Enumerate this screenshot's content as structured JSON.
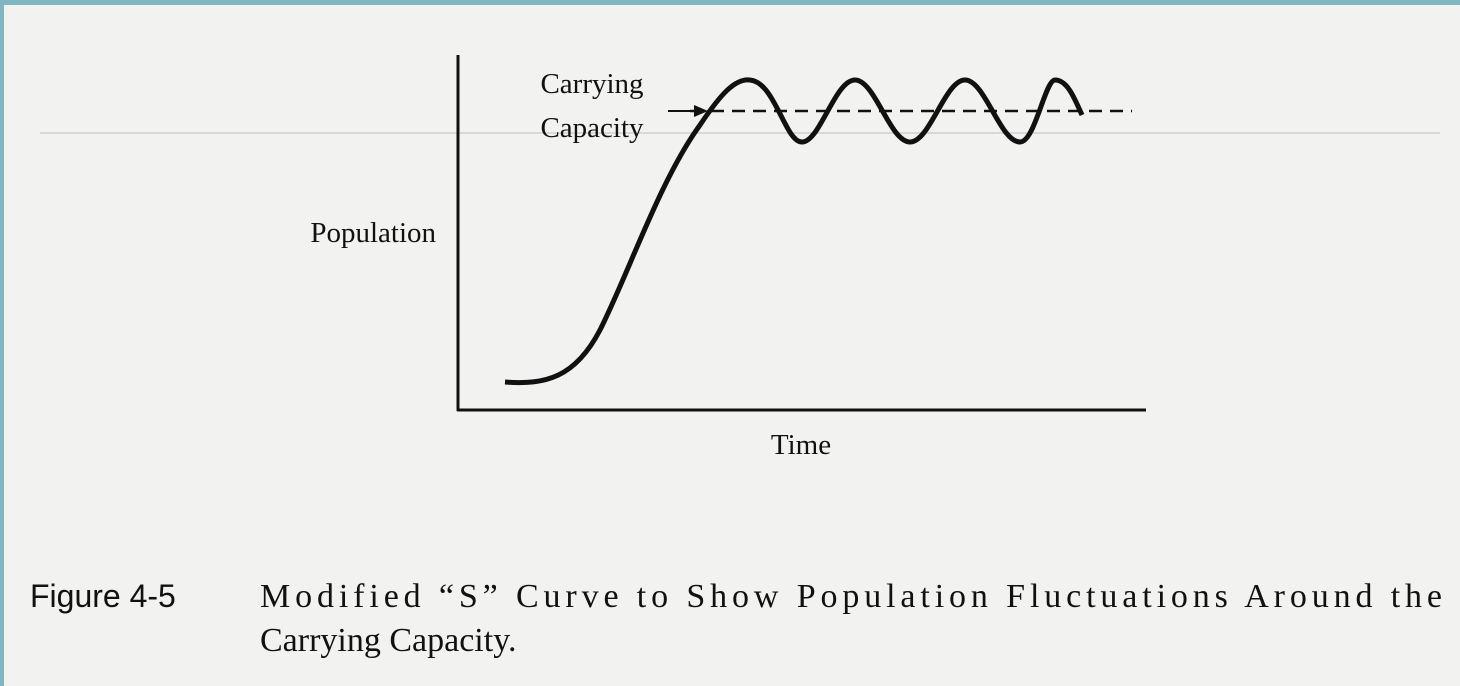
{
  "figure": {
    "labels": {
      "carrying_capacity": [
        "Carrying",
        "Capacity"
      ],
      "y_axis": "Population",
      "x_axis": "Time"
    },
    "caption": {
      "number": "Figure 4-5",
      "lines": [
        "Modified “S” Curve to Show Population Fluctuations Around the",
        "Carrying Capacity."
      ]
    }
  }
}
